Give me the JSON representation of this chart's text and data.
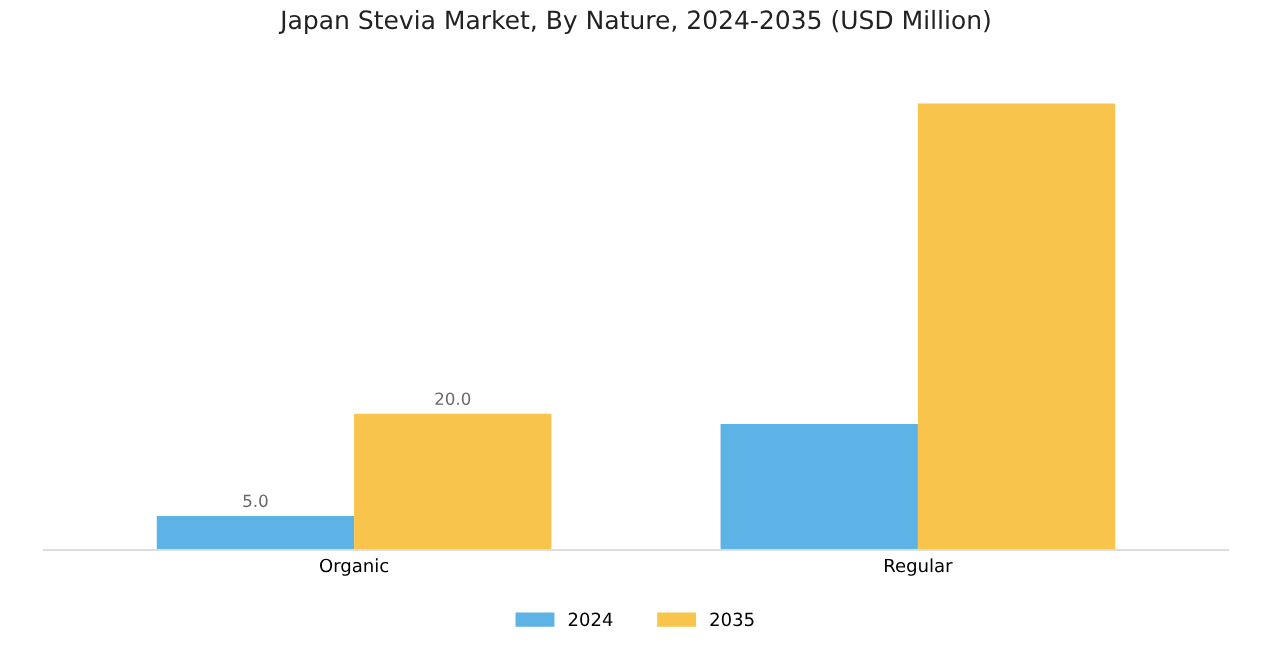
{
  "chart_data": {
    "type": "bar",
    "title": "Japan Stevia Market, By Nature, 2024-2035 (USD Million)",
    "categories": [
      "Organic",
      "Regular"
    ],
    "series": [
      {
        "name": "2024",
        "color": "#5db3e6",
        "values": [
          5.0,
          18.5
        ],
        "value_labels": [
          "5.0",
          null
        ]
      },
      {
        "name": "2035",
        "color": "#f9c44b",
        "values": [
          20.0,
          65.6
        ],
        "value_labels": [
          "20.0",
          null
        ]
      }
    ],
    "legend": "bottom",
    "grid": false
  }
}
